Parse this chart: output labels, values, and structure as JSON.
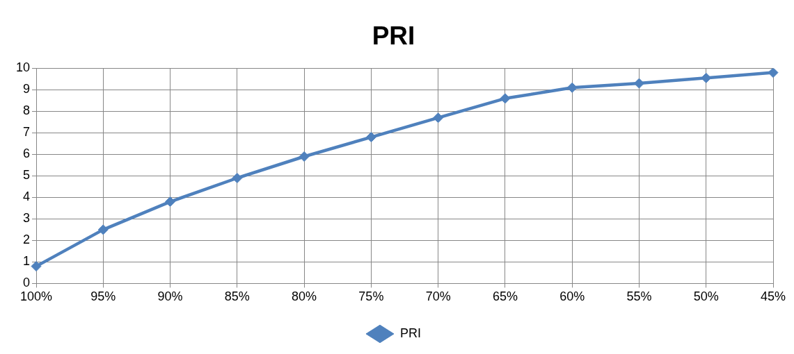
{
  "chart_data": {
    "type": "line",
    "title": "PRI",
    "categories": [
      "100%",
      "95%",
      "90%",
      "85%",
      "80%",
      "75%",
      "70%",
      "65%",
      "60%",
      "55%",
      "50%",
      "45%"
    ],
    "series": [
      {
        "name": "PRI",
        "color": "#4f81bd",
        "values": [
          0.8,
          2.5,
          3.8,
          4.9,
          5.9,
          6.8,
          7.7,
          8.6,
          9.1,
          9.3,
          9.55,
          9.8
        ]
      }
    ],
    "ylim": [
      0,
      10
    ],
    "yticks": [
      0,
      1,
      2,
      3,
      4,
      5,
      6,
      7,
      8,
      9,
      10
    ],
    "grid": true,
    "legend": "bottom",
    "marker": "diamond",
    "line_style": "solid"
  }
}
